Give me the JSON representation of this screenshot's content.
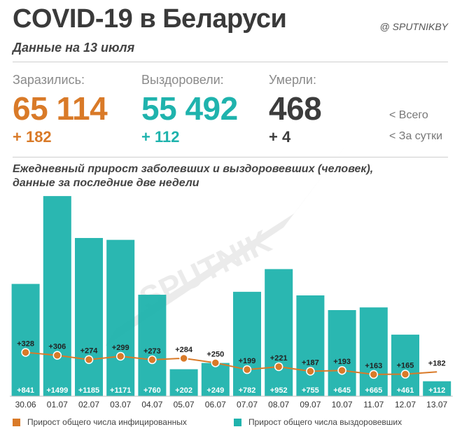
{
  "header": {
    "title": "COVID-19 в Беларуси",
    "handle": "@ SPUTNIKBY",
    "subtitle": "Данные на 13 июля"
  },
  "stats": {
    "infected": {
      "label": "Заразились:",
      "total": "65 114",
      "delta": "+ 182"
    },
    "recovered": {
      "label": "Выздоровели:",
      "total": "55 492",
      "delta": "+ 112"
    },
    "deaths": {
      "label": "Умерли:",
      "total": "468",
      "delta": "+ 4"
    },
    "key_total": "<  Всего",
    "key_daily": "<  За сутки"
  },
  "colors": {
    "infected": "#d97a28",
    "recovered": "#1fb3ad",
    "deaths": "#3c3c3c",
    "watermark": "#dcdcdc"
  },
  "watermark": "SPUTNIK",
  "chart_data": {
    "type": "bar",
    "title": "Ежедневный прирост заболевших и выздоровевших (человек), данные за последние две недели",
    "categories": [
      "30.06",
      "01.07",
      "02.07",
      "03.07",
      "04.07",
      "05.07",
      "06.07",
      "07.07",
      "08.07",
      "09.07",
      "10.07",
      "11.07",
      "12.07",
      "13.07"
    ],
    "series": [
      {
        "name": "Прирост общего числа выздоровевших",
        "type": "bar",
        "values": [
          841,
          1499,
          1185,
          1171,
          760,
          202,
          249,
          782,
          952,
          755,
          645,
          665,
          461,
          112
        ],
        "labels": [
          "+841",
          "+1499",
          "+1185",
          "+1171",
          "+760",
          "+202",
          "+249",
          "+782",
          "+952",
          "+755",
          "+645",
          "+665",
          "+461",
          "+112"
        ]
      },
      {
        "name": "Прирост общего числа инфицированных",
        "type": "line",
        "values": [
          328,
          306,
          274,
          299,
          273,
          284,
          250,
          199,
          221,
          187,
          193,
          163,
          165,
          182
        ],
        "labels": [
          "+328",
          "+306",
          "+274",
          "+299",
          "+273",
          "+284",
          "+250",
          "+199",
          "+221",
          "+187",
          "+193",
          "+163",
          "+165",
          "+182"
        ]
      }
    ],
    "ylim": [
      0,
      1510
    ],
    "grid": false,
    "legend_position": "bottom"
  }
}
